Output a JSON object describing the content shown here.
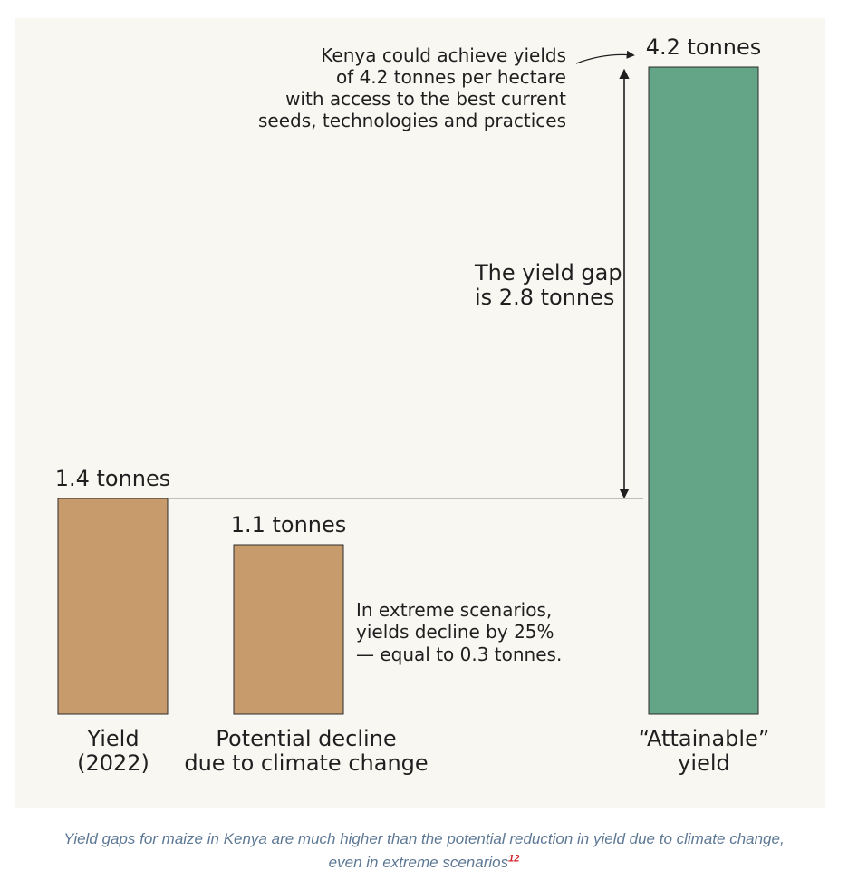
{
  "chart_data": {
    "type": "bar",
    "categories": [
      [
        "Yield",
        "(2022)"
      ],
      [
        "Potential decline",
        "due to climate change"
      ],
      [
        "“Attainable”",
        "yield"
      ]
    ],
    "values": [
      1.4,
      1.1,
      4.2
    ],
    "value_labels": [
      "1.4 tonnes",
      "1.1 tonnes",
      "4.2 tonnes"
    ],
    "colors": [
      "#c79b6b",
      "#c79b6b",
      "#63a586"
    ],
    "ylim": [
      0,
      4.2
    ],
    "grid": false,
    "annotations": {
      "attainable": [
        "Kenya could achieve yields",
        "of 4.2 tonnes per hectare",
        "with access to the best current",
        "seeds, technologies and practices"
      ],
      "gap": [
        "The yield gap",
        "is 2.8 tonnes"
      ],
      "decline": [
        "In extreme scenarios,",
        "yields decline by 25%",
        "— equal to 0.3 tonnes."
      ]
    }
  },
  "caption": {
    "line1": "Yield gaps for maize in Kenya are much higher than the potential reduction in yield due to climate change,",
    "line2": "even in extreme scenarios",
    "footnote": "12"
  }
}
